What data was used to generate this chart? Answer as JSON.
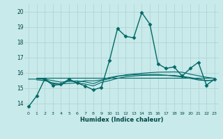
{
  "xlabel": "Humidex (Indice chaleur)",
  "background_color": "#c8eaea",
  "grid_color": "#b0d0d0",
  "line_color": "#006868",
  "xlim": [
    -0.5,
    23.5
  ],
  "ylim": [
    13.5,
    20.5
  ],
  "xticks": [
    0,
    1,
    2,
    3,
    4,
    5,
    6,
    7,
    8,
    9,
    10,
    11,
    12,
    13,
    14,
    15,
    16,
    17,
    18,
    19,
    20,
    21,
    22,
    23
  ],
  "yticks": [
    14,
    15,
    16,
    17,
    18,
    19,
    20
  ],
  "series": [
    {
      "x": [
        0,
        1,
        2,
        3,
        4,
        5,
        6,
        7,
        8,
        9,
        10,
        11,
        12,
        13,
        14,
        15,
        16,
        17,
        18,
        19,
        20,
        21,
        22,
        23
      ],
      "y": [
        13.8,
        14.5,
        15.6,
        15.2,
        15.25,
        15.6,
        15.35,
        15.15,
        14.9,
        15.05,
        16.8,
        18.9,
        18.4,
        18.3,
        19.95,
        19.2,
        16.6,
        16.3,
        16.4,
        15.8,
        16.3,
        16.7,
        15.2,
        15.6
      ],
      "marker": "D",
      "markersize": 2.5,
      "linewidth": 1.0
    },
    {
      "x": [
        1,
        2,
        3,
        4,
        5,
        6,
        7,
        8,
        9,
        10,
        11,
        12,
        13,
        14,
        15,
        16,
        17,
        18,
        19,
        20,
        21,
        22,
        23
      ],
      "y": [
        15.7,
        15.7,
        15.7,
        15.7,
        15.7,
        15.7,
        15.7,
        15.7,
        15.7,
        15.7,
        15.7,
        15.7,
        15.7,
        15.7,
        15.7,
        15.7,
        15.7,
        15.7,
        15.7,
        15.7,
        15.7,
        15.7,
        15.7
      ],
      "marker": null,
      "markersize": 0,
      "linewidth": 0.8
    },
    {
      "x": [
        1,
        2,
        3,
        4,
        5,
        6,
        7,
        8,
        9,
        10,
        11,
        12,
        13,
        14,
        15,
        16,
        17,
        18,
        19,
        20,
        21,
        22,
        23
      ],
      "y": [
        15.65,
        15.6,
        15.5,
        15.4,
        15.45,
        15.48,
        15.42,
        15.3,
        15.5,
        15.62,
        15.78,
        15.88,
        15.93,
        15.98,
        16.02,
        16.05,
        16.06,
        16.07,
        16.05,
        15.92,
        15.82,
        15.72,
        15.65
      ],
      "marker": null,
      "markersize": 0,
      "linewidth": 0.8
    },
    {
      "x": [
        1,
        2,
        3,
        4,
        5,
        6,
        7,
        8,
        9,
        10,
        11,
        12,
        13,
        14,
        15,
        16,
        17,
        18,
        19,
        20,
        21,
        22,
        23
      ],
      "y": [
        15.55,
        15.5,
        15.35,
        15.28,
        15.32,
        15.35,
        15.28,
        15.15,
        15.38,
        15.5,
        15.65,
        15.75,
        15.8,
        15.84,
        15.85,
        15.85,
        15.85,
        15.84,
        15.78,
        15.7,
        15.6,
        15.5,
        15.52
      ],
      "marker": null,
      "markersize": 0,
      "linewidth": 0.8
    },
    {
      "x": [
        0,
        1,
        2,
        3,
        4,
        5,
        6,
        7,
        8,
        9,
        10,
        11,
        12,
        13,
        14,
        15,
        16,
        17,
        18,
        19,
        20,
        21,
        22,
        23
      ],
      "y": [
        15.6,
        15.6,
        15.6,
        15.3,
        15.25,
        15.5,
        15.38,
        15.5,
        15.48,
        15.55,
        15.7,
        15.8,
        15.84,
        15.88,
        15.9,
        15.9,
        15.9,
        15.85,
        15.8,
        15.74,
        15.65,
        15.54,
        15.5,
        15.55
      ],
      "marker": null,
      "markersize": 0,
      "linewidth": 0.8
    }
  ]
}
